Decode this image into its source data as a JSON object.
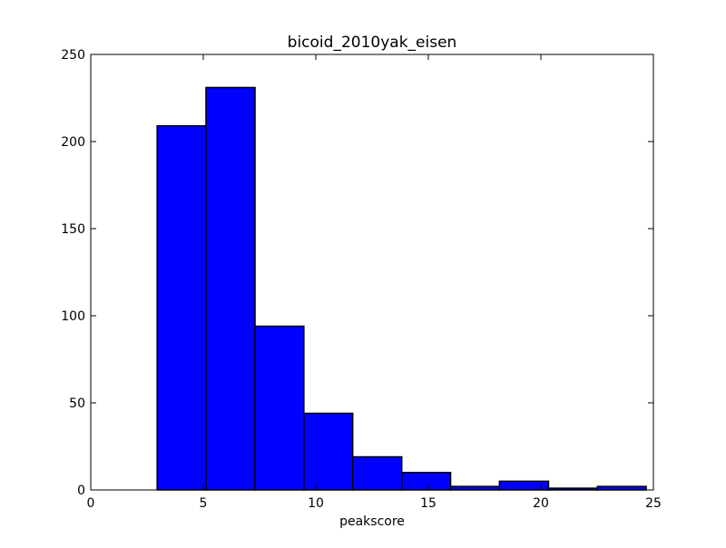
{
  "chart_data": {
    "type": "bar",
    "title": "bicoid_2010yak_eisen",
    "xlabel": "peakscore",
    "ylabel": "",
    "xlim": [
      0,
      25
    ],
    "ylim": [
      0,
      250
    ],
    "xticks": [
      0,
      5,
      10,
      15,
      20,
      25
    ],
    "yticks": [
      0,
      50,
      100,
      150,
      200,
      250
    ],
    "bins": [
      {
        "x0": 2.95,
        "x1": 5.12,
        "count": 209
      },
      {
        "x0": 5.12,
        "x1": 7.3,
        "count": 231
      },
      {
        "x0": 7.3,
        "x1": 9.47,
        "count": 94
      },
      {
        "x0": 9.47,
        "x1": 11.64,
        "count": 44
      },
      {
        "x0": 11.64,
        "x1": 13.82,
        "count": 19
      },
      {
        "x0": 13.82,
        "x1": 15.99,
        "count": 10
      },
      {
        "x0": 15.99,
        "x1": 18.16,
        "count": 2
      },
      {
        "x0": 18.16,
        "x1": 20.34,
        "count": 5
      },
      {
        "x0": 20.34,
        "x1": 22.51,
        "count": 1
      },
      {
        "x0": 22.51,
        "x1": 24.68,
        "count": 2
      }
    ],
    "bar_color": "#0000ff",
    "edge_color": "#000000",
    "grid": false,
    "legend": "none"
  }
}
